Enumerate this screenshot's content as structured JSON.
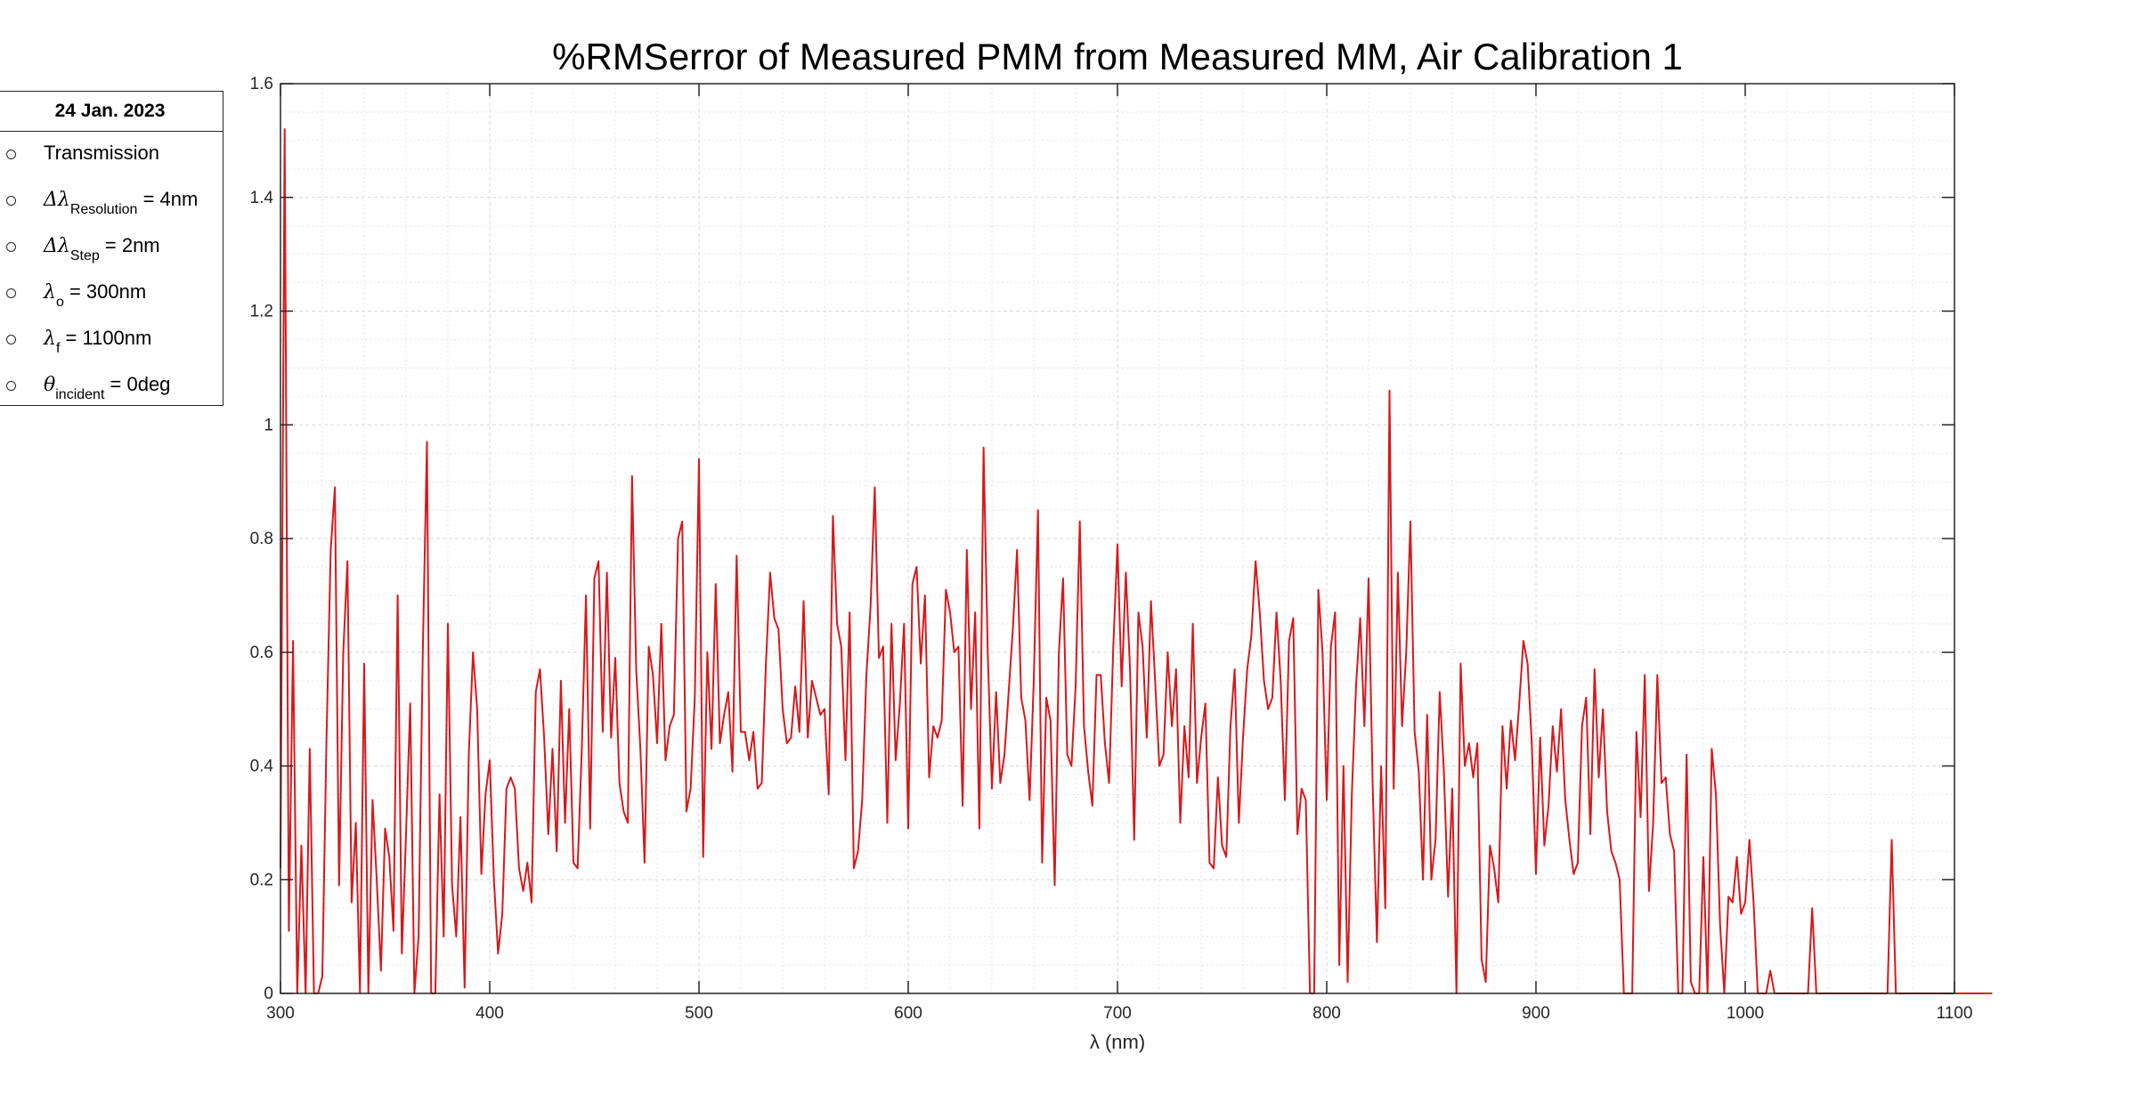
{
  "chart_data": {
    "type": "line",
    "title": "%RMSerror of Measured PMM from Measured MM,  Air Calibration 1",
    "xlabel": "λ (nm)",
    "ylabel": "",
    "xlim": [
      300,
      1100
    ],
    "ylim": [
      0,
      1.6
    ],
    "x_ticks": [
      300,
      400,
      500,
      600,
      700,
      800,
      900,
      1000,
      1100
    ],
    "y_ticks": [
      0,
      0.2,
      0.4,
      0.6,
      0.8,
      1,
      1.2,
      1.4,
      1.6
    ],
    "x_tick_labels": [
      "300",
      "400",
      "500",
      "600",
      "700",
      "800",
      "900",
      "1000",
      "1100"
    ],
    "y_tick_labels": [
      "0",
      "0.2",
      "0.4",
      "0.6",
      "0.8",
      "1",
      "1.2",
      "1.4",
      "1.6"
    ],
    "grid": true,
    "minor_grid": true,
    "line_color": "#d7191c",
    "x_step": 2,
    "series": [
      {
        "x_start": 300,
        "values": [
          0.22,
          1.52,
          0.11,
          0.62,
          0.0,
          0.26,
          0.0,
          0.43,
          0.0,
          0.0,
          0.03,
          0.45,
          0.78,
          0.89,
          0.19,
          0.6,
          0.76,
          0.16,
          0.3,
          0.0,
          0.58,
          0.0,
          0.34,
          0.2,
          0.04,
          0.29,
          0.24,
          0.11,
          0.7,
          0.07,
          0.28,
          0.51,
          0.0,
          0.1,
          0.6,
          0.97,
          0.0,
          0.0,
          0.35,
          0.1,
          0.65,
          0.19,
          0.1,
          0.31,
          0.01,
          0.42,
          0.6,
          0.5,
          0.21,
          0.35,
          0.41,
          0.2,
          0.07,
          0.14,
          0.36,
          0.38,
          0.36,
          0.22,
          0.18,
          0.23,
          0.16,
          0.53,
          0.57,
          0.45,
          0.28,
          0.43,
          0.25,
          0.55,
          0.3,
          0.5,
          0.23,
          0.22,
          0.43,
          0.7,
          0.29,
          0.73,
          0.76,
          0.46,
          0.74,
          0.45,
          0.59,
          0.37,
          0.32,
          0.3,
          0.91,
          0.57,
          0.43,
          0.23,
          0.61,
          0.56,
          0.44,
          0.65,
          0.41,
          0.47,
          0.49,
          0.8,
          0.83,
          0.32,
          0.36,
          0.52,
          0.94,
          0.24,
          0.6,
          0.43,
          0.72,
          0.44,
          0.49,
          0.53,
          0.39,
          0.77,
          0.46,
          0.46,
          0.41,
          0.46,
          0.36,
          0.37,
          0.58,
          0.74,
          0.66,
          0.64,
          0.5,
          0.44,
          0.45,
          0.54,
          0.46,
          0.69,
          0.45,
          0.55,
          0.52,
          0.49,
          0.5,
          0.35,
          0.84,
          0.65,
          0.61,
          0.41,
          0.67,
          0.22,
          0.25,
          0.34,
          0.56,
          0.68,
          0.89,
          0.59,
          0.61,
          0.3,
          0.65,
          0.41,
          0.51,
          0.65,
          0.29,
          0.72,
          0.75,
          0.58,
          0.7,
          0.38,
          0.47,
          0.45,
          0.48,
          0.71,
          0.67,
          0.6,
          0.61,
          0.33,
          0.78,
          0.5,
          0.67,
          0.29,
          0.96,
          0.6,
          0.36,
          0.53,
          0.37,
          0.42,
          0.53,
          0.64,
          0.78,
          0.52,
          0.48,
          0.34,
          0.55,
          0.85,
          0.23,
          0.52,
          0.48,
          0.19,
          0.6,
          0.73,
          0.42,
          0.4,
          0.54,
          0.83,
          0.47,
          0.39,
          0.33,
          0.56,
          0.56,
          0.44,
          0.37,
          0.61,
          0.79,
          0.54,
          0.74,
          0.57,
          0.27,
          0.67,
          0.61,
          0.45,
          0.69,
          0.55,
          0.4,
          0.42,
          0.6,
          0.47,
          0.57,
          0.3,
          0.47,
          0.38,
          0.65,
          0.37,
          0.45,
          0.51,
          0.23,
          0.22,
          0.38,
          0.26,
          0.24,
          0.47,
          0.57,
          0.3,
          0.45,
          0.57,
          0.63,
          0.76,
          0.67,
          0.55,
          0.5,
          0.52,
          0.67,
          0.55,
          0.34,
          0.62,
          0.66,
          0.28,
          0.36,
          0.34,
          0.0,
          0.0,
          0.71,
          0.6,
          0.34,
          0.61,
          0.67,
          0.05,
          0.4,
          0.02,
          0.35,
          0.54,
          0.66,
          0.47,
          0.73,
          0.36,
          0.09,
          0.4,
          0.15,
          1.06,
          0.36,
          0.74,
          0.47,
          0.6,
          0.83,
          0.46,
          0.39,
          0.2,
          0.49,
          0.2,
          0.27,
          0.53,
          0.39,
          0.17,
          0.36,
          0.0,
          0.58,
          0.4,
          0.44,
          0.38,
          0.44,
          0.06,
          0.02,
          0.26,
          0.22,
          0.16,
          0.47,
          0.36,
          0.48,
          0.41,
          0.51,
          0.62,
          0.58,
          0.44,
          0.21,
          0.45,
          0.26,
          0.33,
          0.47,
          0.39,
          0.5,
          0.34,
          0.27,
          0.21,
          0.23,
          0.47,
          0.52,
          0.28,
          0.57,
          0.38,
          0.5,
          0.32,
          0.25,
          0.23,
          0.2,
          0.0,
          0.0,
          0.0,
          0.46,
          0.31,
          0.56,
          0.18,
          0.3,
          0.56,
          0.37,
          0.38,
          0.28,
          0.25,
          0.0,
          0.0,
          0.42,
          0.02,
          0.0,
          0.0,
          0.24,
          0.0,
          0.43,
          0.35,
          0.12,
          0.0,
          0.17,
          0.16,
          0.24,
          0.14,
          0.16,
          0.27,
          0.16,
          0.0,
          0.0,
          0.0,
          0.04,
          0.0,
          0.0,
          0.0,
          0.0,
          0.0,
          0.0,
          0.0,
          0.0,
          0.0,
          0.15,
          0.0,
          0.0,
          0.0,
          0.0,
          0.0,
          0.0,
          0.0,
          0.0,
          0.0,
          0.0,
          0.0,
          0.0,
          0.0,
          0.0,
          0.0,
          0.0,
          0.0,
          0.0,
          0.27,
          0.0,
          0.0,
          0.0,
          0.0,
          0.0,
          0.0,
          0.0,
          0.0,
          0.0,
          0.0,
          0.0,
          0.0,
          0.0,
          0.0,
          0.0,
          0.0,
          0.0,
          0.0,
          0.0,
          0.0,
          0.0,
          0.0,
          0.0,
          0.0
        ]
      }
    ]
  },
  "legend": {
    "title": "24 Jan. 2023",
    "entries": [
      {
        "symbol": "",
        "subscript": "",
        "suffix": "Transmission"
      },
      {
        "symbol": "Δλ",
        "subscript": "Resolution",
        "suffix": " = 4nm"
      },
      {
        "symbol": "Δλ",
        "subscript": "Step",
        "suffix": " = 2nm"
      },
      {
        "symbol": "λ",
        "subscript": "o",
        "suffix": " = 300nm"
      },
      {
        "symbol": "λ",
        "subscript": "f",
        "suffix": " = 1100nm"
      },
      {
        "symbol": "θ",
        "subscript": "incident",
        "suffix": " = 0deg"
      }
    ]
  }
}
